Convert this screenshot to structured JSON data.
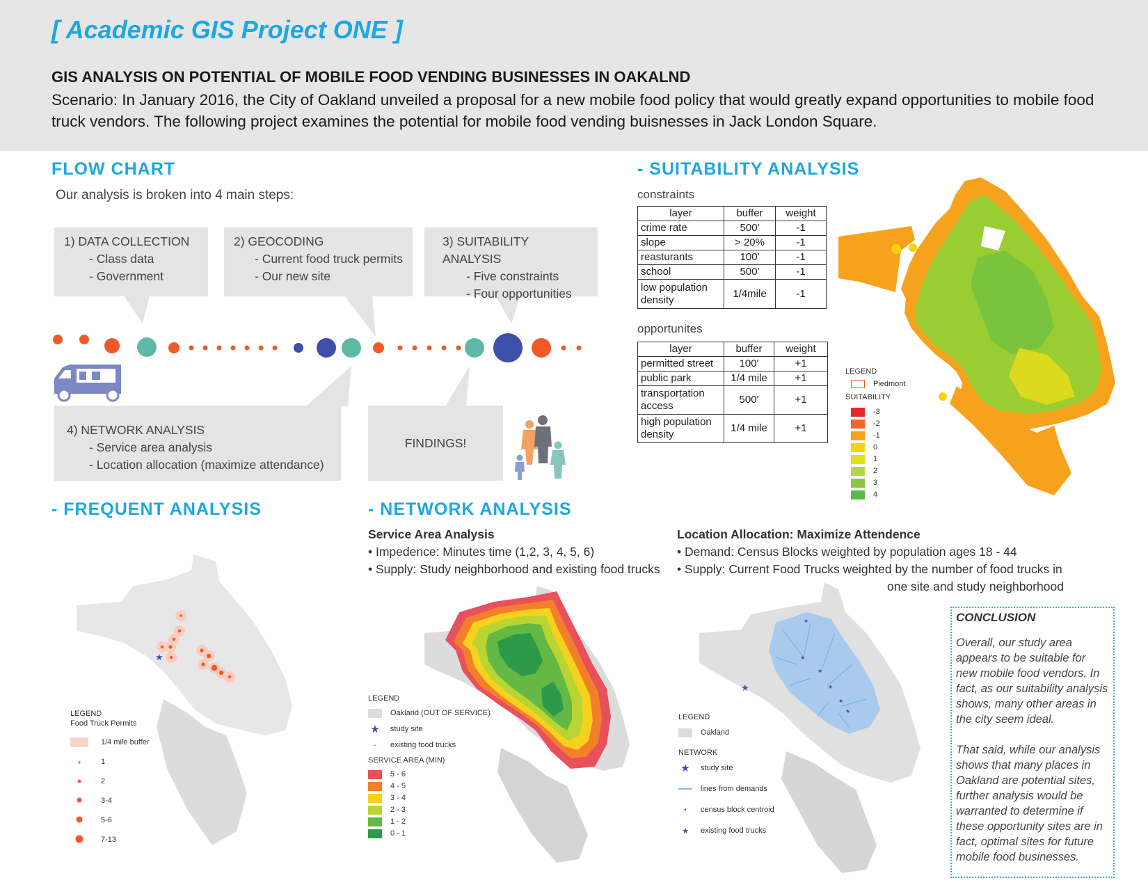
{
  "header": {
    "project_title": "[ Academic GIS Project ONE ]",
    "main_heading": "GIS ANALYSIS ON POTENTIAL OF MOBILE FOOD VENDING BUSINESSES IN OAKALND",
    "scenario": "Scenario: In January 2016, the City of Oakland unveiled a proposal for a new mobile food policy that would greatly expand opportunities to mobile food truck vendors. The following project examines the potential for mobile food vending buisnesses in Jack London Square."
  },
  "flow_chart": {
    "title": "FLOW CHART",
    "intro": "Our analysis is broken into 4 main steps:",
    "steps": [
      {
        "heading": "1) DATA COLLECTION",
        "items": [
          "- Class data",
          "- Government"
        ]
      },
      {
        "heading": "2) GEOCODING",
        "items": [
          "- Current food truck permits",
          "- Our new site"
        ]
      },
      {
        "heading": "3) SUITABILITY ANALYSIS",
        "items": [
          "- Five constraints",
          "- Four opportunities"
        ]
      },
      {
        "heading": "4) NETWORK ANALYSIS",
        "items": [
          "- Service area analysis",
          "- Location allocation (maximize attendance)"
        ]
      }
    ],
    "findings": "FINDINGS!",
    "colors": {
      "orange": "#f05a28",
      "teal": "#5fb8a6",
      "blue": "#3d4fa8",
      "truck": "#7b88c4",
      "people_orange": "#f4a261",
      "people_gray": "#6d6f7a",
      "people_blue": "#8a9fd1",
      "people_teal": "#87c6bd"
    }
  },
  "suitability": {
    "title": "- SUITABILITY ANALYSIS",
    "constraints_label": "constraints",
    "constraints_headers": [
      "layer",
      "buffer",
      "weight"
    ],
    "constraints": [
      [
        "crime rate",
        "500'",
        "-1"
      ],
      [
        "slope",
        "> 20%",
        "-1"
      ],
      [
        "reasturants",
        "100'",
        "-1"
      ],
      [
        "school",
        "500'",
        "-1"
      ],
      [
        "low population density",
        "1/4mile",
        "-1"
      ]
    ],
    "opportunities_label": "opportunites",
    "opportunities_headers": [
      "layer",
      "buffer",
      "weight"
    ],
    "opportunities": [
      [
        "permitted street",
        "100'",
        "+1"
      ],
      [
        "public park",
        "1/4 mile",
        "+1"
      ],
      [
        "transportation access",
        "500'",
        "+1"
      ],
      [
        "high population density",
        "1/4 mile",
        "+1"
      ]
    ],
    "legend": {
      "title": "LEGEND",
      "piedmont": "Piedmont",
      "suitability_label": "SUITABILITY",
      "classes": [
        {
          "label": "-3",
          "color": "#e8262b"
        },
        {
          "label": "-2",
          "color": "#f0642d"
        },
        {
          "label": "-1",
          "color": "#f7a21d"
        },
        {
          "label": "0",
          "color": "#f3d40c"
        },
        {
          "label": "1",
          "color": "#dce21c"
        },
        {
          "label": "2",
          "color": "#b6d83a"
        },
        {
          "label": "3",
          "color": "#8cc63f"
        },
        {
          "label": "4",
          "color": "#5cb947"
        }
      ]
    }
  },
  "frequent": {
    "title": "- FREQUENT ANALYSIS",
    "legend": {
      "title": "LEGEND",
      "subtitle": "Food Truck Permits",
      "buffer": "1/4 mile buffer",
      "classes": [
        "1",
        "2",
        "3-4",
        "5-6",
        "7-13"
      ]
    }
  },
  "network": {
    "title": "- NETWORK ANALYSIS",
    "service_area": {
      "heading": "Service Area Analysis",
      "bullets": [
        "• Impedence: Minutes time (1,2, 3, 4, 5, 6)",
        "• Supply: Study neighborhood and existing food trucks"
      ],
      "legend": {
        "title": "LEGEND",
        "oakland": "Oakland (OUT OF SERVICE)",
        "study_site": "study site",
        "existing": "existing food trucks",
        "service_label": "SERVICE AREA (MIN)",
        "classes": [
          {
            "label": "5 - 6",
            "color": "#e8505b"
          },
          {
            "label": "4 - 5",
            "color": "#f47f2b"
          },
          {
            "label": "3 - 4",
            "color": "#f6d21e"
          },
          {
            "label": "2 - 3",
            "color": "#b9d531"
          },
          {
            "label": "1 - 2",
            "color": "#64b844"
          },
          {
            "label": "0 - 1",
            "color": "#2c9a48"
          }
        ]
      }
    },
    "location_allocation": {
      "heading": "Location Allocation: Maximize Attendence",
      "bullets": [
        "• Demand: Census Blocks weighted by population ages 18 - 44",
        "• Supply: Current Food Trucks weighted by the number of food trucks in",
        "one site and study neighborhood"
      ],
      "legend": {
        "title": "LEGEND",
        "oakland": "Oakland",
        "network_label": "NETWORK",
        "study_site": "study site",
        "lines": "lines from demands",
        "centroid": "census block centroid",
        "existing": "existing food trucks"
      }
    }
  },
  "conclusion": {
    "title": "CONCLUSION",
    "p1": "Overall, our study area appears to be suitable for new mobile food vendors. In fact, as our suitability analysis shows, many other areas in the city seem ideal.",
    "p2": "That said, while our analysis shows that many places in Oakland are potential sites, further analysis would be warranted to determine if these opportunity sites are in fact, optimal sites for future mobile food businesses."
  }
}
